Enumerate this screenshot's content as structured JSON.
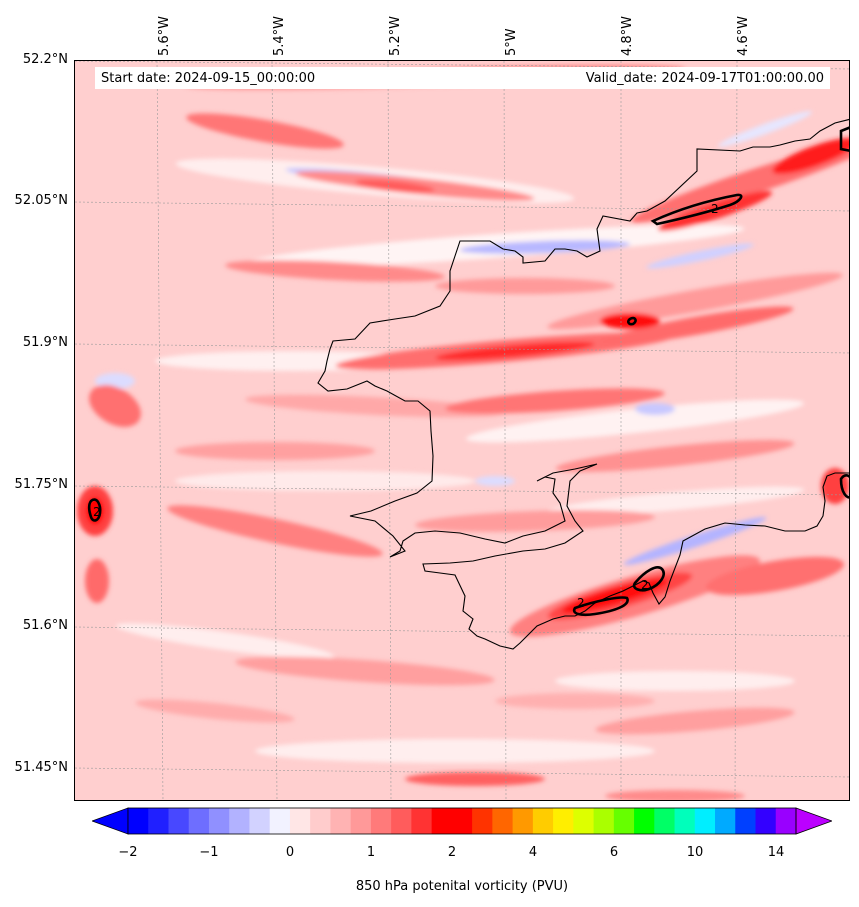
{
  "map": {
    "start_date_text": "Start date: 2024-09-15_00:00:00",
    "valid_date_text": "Valid_date: 2024-09-17T01:00:00.00",
    "lat_labels": [
      "52.2°N",
      "52.05°N",
      "51.9°N",
      "51.75°N",
      "51.6°N",
      "51.45°N"
    ],
    "lon_labels": [
      "5.6°W",
      "5.4°W",
      "5.2°W",
      "5°W",
      "4.8°W",
      "4.6°W"
    ],
    "contour_label": "2",
    "contour_labels": [
      "2",
      "2",
      "2",
      "2"
    ]
  },
  "colorbar": {
    "label": "850 hPa potenital vorticity (PVU)",
    "tick_labels": [
      "−2",
      "−1",
      "0",
      "1",
      "2",
      "4",
      "6",
      "10",
      "14"
    ],
    "colors": [
      "#0000ff",
      "#2020ff",
      "#4848ff",
      "#6e6eff",
      "#9090ff",
      "#b2b2ff",
      "#d2d2ff",
      "#f2f2ff",
      "#ffe6e6",
      "#ffcccc",
      "#ffb3b3",
      "#ff9999",
      "#ff7a7a",
      "#ff5c5c",
      "#ff3333",
      "#ff0000",
      "#ff0000",
      "#ff3300",
      "#ff6600",
      "#ff9900",
      "#ffcc00",
      "#ffee00",
      "#ddff00",
      "#aaff00",
      "#66ff00",
      "#00ff00",
      "#00ff66",
      "#00ffbb",
      "#00eeff",
      "#00aaff",
      "#0040ff",
      "#3300ff",
      "#9900ff"
    ],
    "extend_low_color": "#0000ff",
    "extend_high_color": "#bb00ff"
  }
}
